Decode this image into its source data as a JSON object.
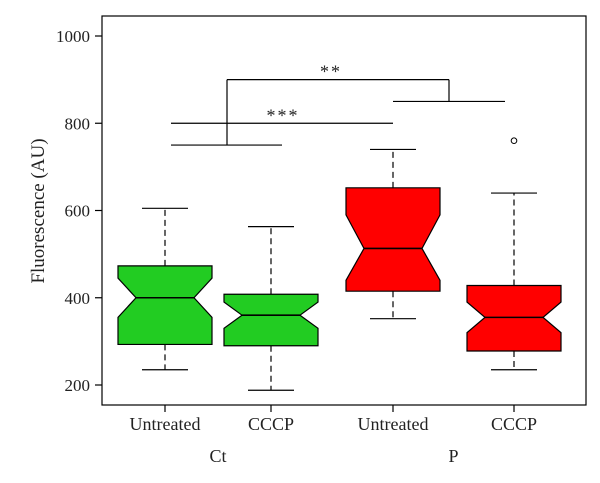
{
  "chart_data": {
    "type": "boxplot",
    "title": "",
    "ylabel": "Fluorescence (AU)",
    "xlabel": "",
    "ylim": [
      160,
      1010
    ],
    "yticks": [
      200,
      400,
      600,
      800,
      1000
    ],
    "grid": false,
    "categories": [
      "Untreated",
      "CCCP",
      "Untreated",
      "CCCP"
    ],
    "groups": [
      {
        "label": "Ct",
        "members": [
          0,
          1
        ]
      },
      {
        "label": "P",
        "members": [
          2,
          3
        ]
      }
    ],
    "boxes": [
      {
        "category": "Untreated",
        "group": "Ct",
        "color": "#22cc22",
        "whisker_low": 235,
        "q1": 293,
        "median": 400,
        "q3": 473,
        "whisker_high": 605,
        "notch_low": 355,
        "notch_high": 445,
        "outliers": []
      },
      {
        "category": "CCCP",
        "group": "Ct",
        "color": "#22cc22",
        "whisker_low": 188,
        "q1": 290,
        "median": 360,
        "q3": 408,
        "whisker_high": 563,
        "notch_low": 330,
        "notch_high": 390,
        "outliers": []
      },
      {
        "category": "Untreated",
        "group": "P",
        "color": "#ff0000",
        "whisker_low": 352,
        "q1": 415,
        "median": 513,
        "q3": 652,
        "whisker_high": 740,
        "notch_low": 440,
        "notch_high": 590,
        "outliers": []
      },
      {
        "category": "CCCP",
        "group": "P",
        "color": "#ff0000",
        "whisker_low": 235,
        "q1": 278,
        "median": 355,
        "q3": 428,
        "whisker_high": 640,
        "notch_low": 320,
        "notch_high": 390,
        "outliers": [
          760
        ]
      }
    ],
    "significance": [
      {
        "label": "***",
        "y": 800,
        "from_bracket": {
          "y": 750,
          "span": [
            0,
            1
          ]
        },
        "to_box": 2
      },
      {
        "label": "**",
        "y": 900,
        "from_bracket": {
          "y": 750,
          "span": [
            0,
            1
          ]
        },
        "to_bracket": {
          "y": 850,
          "span": [
            2,
            3
          ]
        }
      }
    ]
  }
}
